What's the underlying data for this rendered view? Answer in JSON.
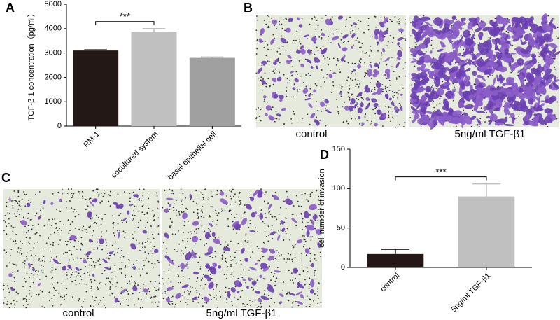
{
  "panel_labels": [
    "A",
    "B",
    "C",
    "D"
  ],
  "micrographs": [
    {
      "captions": [
        "control",
        "5ng/ml TGF-β1"
      ]
    },
    {
      "captions": [
        "control",
        "5ng/ml TGF-β1"
      ]
    }
  ],
  "chart_data": [
    {
      "type": "bar",
      "y_label": "TGF-β 1 concentration（pg/ml）",
      "categories": [
        "RM-1",
        "cocultured system",
        "basal epithelial cell"
      ],
      "values": [
        3100,
        3850,
        2800
      ],
      "errors": [
        30,
        150,
        30
      ],
      "colors": [
        "#231815",
        "#c0c0c0",
        "#a0a0a0"
      ],
      "ylim": [
        0,
        5000
      ],
      "yticks": [
        0,
        1000,
        2000,
        3000,
        4000,
        5000
      ],
      "annotation": "***"
    },
    {
      "type": "bar",
      "y_label": "cell number of invasion",
      "categories": [
        "control",
        "5ng/ml TGF-β1"
      ],
      "values": [
        17,
        90
      ],
      "errors": [
        6,
        16
      ],
      "colors": [
        "#231815",
        "#c0c0c0"
      ],
      "ylim": [
        0,
        150
      ],
      "yticks": [
        0,
        50,
        100,
        150
      ],
      "annotation": "***"
    }
  ]
}
